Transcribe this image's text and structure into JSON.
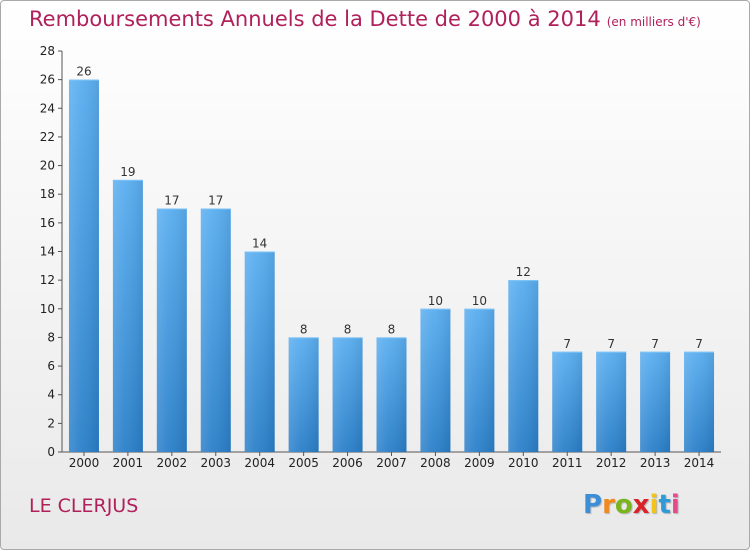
{
  "header": {
    "title": "Remboursements Annuels de la Dette de 2000 à 2014",
    "unit_note": "(en milliers d'€)"
  },
  "footer": {
    "commune": "LE CLERJUS",
    "logo_letters": [
      "P",
      "r",
      "o",
      "x",
      "i",
      "t",
      "i"
    ],
    "logo_colors": [
      "#3a8fd8",
      "#f08a1c",
      "#7ab51d",
      "#d8232a",
      "#f0c419",
      "#2f9ad8",
      "#e64a8a"
    ]
  },
  "chart_data": {
    "type": "bar",
    "title": "Remboursements Annuels de la Dette de 2000 à 2014",
    "subtitle": "(en milliers d'€)",
    "categories": [
      "2000",
      "2001",
      "2002",
      "2003",
      "2004",
      "2005",
      "2006",
      "2007",
      "2008",
      "2009",
      "2010",
      "2011",
      "2012",
      "2013",
      "2014"
    ],
    "values": [
      26,
      19,
      17,
      17,
      14,
      8,
      8,
      8,
      10,
      10,
      12,
      7,
      7,
      7,
      7
    ],
    "ylim": [
      0,
      28
    ],
    "yticks": [
      0,
      2,
      4,
      6,
      8,
      10,
      12,
      14,
      16,
      18,
      20,
      22,
      24,
      26,
      28
    ],
    "xlabel": "",
    "ylabel": "",
    "grid": false,
    "bar_color_top": "#5aaef0",
    "bar_color_bottom": "#2a7fc9"
  }
}
